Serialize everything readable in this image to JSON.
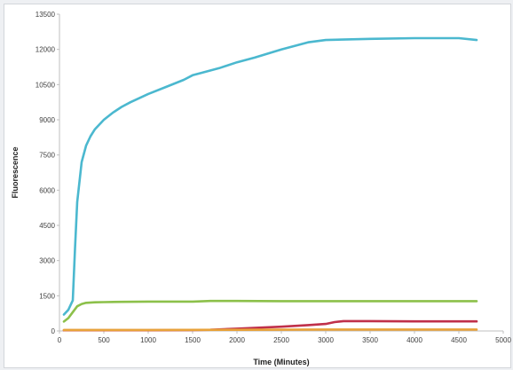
{
  "chart_data": {
    "type": "line",
    "title": "",
    "xlabel": "Time (Minutes)",
    "ylabel": "Fluorescence",
    "xlim": [
      0,
      5000
    ],
    "ylim": [
      0,
      13500
    ],
    "x_ticks": [
      0,
      500,
      1000,
      1500,
      2000,
      2500,
      3000,
      3500,
      4000,
      4500,
      5000
    ],
    "y_ticks": [
      0,
      1500,
      3000,
      4500,
      6000,
      7500,
      9000,
      10500,
      12000,
      13500
    ],
    "grid": false,
    "legend": "none",
    "series": [
      {
        "color": "#4bb8cf",
        "x": [
          50,
          100,
          150,
          175,
          200,
          250,
          300,
          350,
          400,
          500,
          600,
          700,
          800,
          1000,
          1200,
          1400,
          1500,
          1600,
          1800,
          2000,
          2200,
          2500,
          2800,
          3000,
          3500,
          4000,
          4500,
          4700
        ],
        "y": [
          700,
          900,
          1300,
          3500,
          5500,
          7200,
          7900,
          8300,
          8600,
          9000,
          9300,
          9550,
          9750,
          10100,
          10400,
          10700,
          10900,
          11000,
          11200,
          11450,
          11650,
          12000,
          12300,
          12400,
          12450,
          12480,
          12480,
          12400
        ]
      },
      {
        "color": "#8cc04a",
        "x": [
          50,
          100,
          150,
          200,
          250,
          300,
          400,
          500,
          700,
          1000,
          1500,
          1700,
          2000,
          2500,
          3000,
          3500,
          4000,
          4500,
          4700
        ],
        "y": [
          400,
          550,
          800,
          1050,
          1150,
          1200,
          1220,
          1230,
          1240,
          1250,
          1250,
          1280,
          1280,
          1270,
          1270,
          1270,
          1270,
          1270,
          1270
        ]
      },
      {
        "color": "#c0304a",
        "x": [
          50,
          500,
          1000,
          1500,
          1700,
          2000,
          2500,
          2800,
          3000,
          3100,
          3200,
          3500,
          4000,
          4500,
          4700
        ],
        "y": [
          30,
          30,
          30,
          40,
          50,
          100,
          180,
          250,
          300,
          380,
          420,
          420,
          410,
          410,
          410
        ]
      },
      {
        "color": "#e8a23a",
        "x": [
          50,
          1000,
          2000,
          3000,
          4000,
          4700
        ],
        "y": [
          40,
          40,
          50,
          60,
          60,
          60
        ]
      }
    ]
  }
}
